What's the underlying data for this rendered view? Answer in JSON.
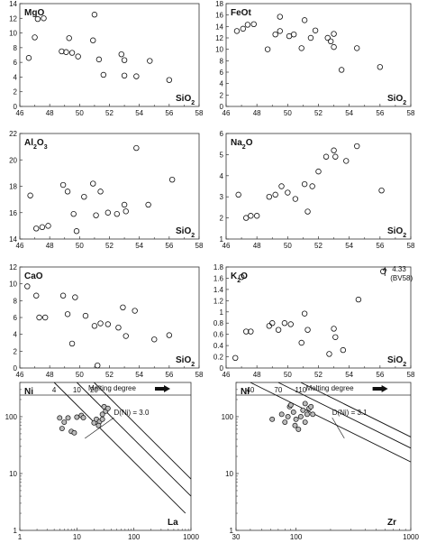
{
  "chart_data": [
    {
      "id": "mgo",
      "type": "scatter",
      "ylabel": "MgO",
      "xlabel": "SiO2",
      "xlim": [
        46,
        58
      ],
      "ylim": [
        0,
        14
      ],
      "xticks": [
        46,
        48,
        50,
        52,
        54,
        56,
        58
      ],
      "yticks": [
        0,
        2,
        4,
        6,
        8,
        10,
        12,
        14
      ],
      "points": [
        [
          46.6,
          6.6
        ],
        [
          47.0,
          9.4
        ],
        [
          47.2,
          11.9
        ],
        [
          47.6,
          12.0
        ],
        [
          48.8,
          7.5
        ],
        [
          49.1,
          7.4
        ],
        [
          49.3,
          9.3
        ],
        [
          49.5,
          7.3
        ],
        [
          49.9,
          6.8
        ],
        [
          50.9,
          9.0
        ],
        [
          51.0,
          12.5
        ],
        [
          51.3,
          6.4
        ],
        [
          51.6,
          4.3
        ],
        [
          52.8,
          7.1
        ],
        [
          53.0,
          6.3
        ],
        [
          53.0,
          4.2
        ],
        [
          53.8,
          4.1
        ],
        [
          54.7,
          6.2
        ],
        [
          56.0,
          3.6
        ]
      ]
    },
    {
      "id": "feot",
      "type": "scatter",
      "ylabel": "FeOt",
      "xlabel": "SiO2",
      "xlim": [
        46,
        58
      ],
      "ylim": [
        0,
        18
      ],
      "xticks": [
        46,
        48,
        50,
        52,
        54,
        56,
        58
      ],
      "yticks": [
        0,
        2,
        4,
        6,
        8,
        10,
        12,
        14,
        16,
        18
      ],
      "points": [
        [
          46.7,
          13.2
        ],
        [
          47.1,
          13.6
        ],
        [
          47.4,
          14.3
        ],
        [
          47.8,
          14.4
        ],
        [
          48.7,
          10.0
        ],
        [
          49.2,
          12.6
        ],
        [
          49.5,
          13.2
        ],
        [
          49.5,
          15.7
        ],
        [
          50.1,
          12.3
        ],
        [
          50.4,
          12.6
        ],
        [
          50.9,
          10.2
        ],
        [
          51.1,
          15.1
        ],
        [
          51.5,
          12.0
        ],
        [
          51.8,
          13.3
        ],
        [
          52.6,
          12.0
        ],
        [
          52.8,
          11.4
        ],
        [
          53.0,
          12.7
        ],
        [
          53.0,
          10.4
        ],
        [
          53.5,
          6.4
        ],
        [
          54.5,
          10.2
        ],
        [
          56.0,
          6.9
        ]
      ]
    },
    {
      "id": "al2o3",
      "type": "scatter",
      "ylabel": "Al2O3",
      "xlabel": "SiO2",
      "xlim": [
        46,
        58
      ],
      "ylim": [
        14,
        22
      ],
      "xticks": [
        46,
        48,
        50,
        52,
        54,
        56,
        58
      ],
      "yticks": [
        14,
        16,
        18,
        20,
        22
      ],
      "points": [
        [
          46.7,
          17.3
        ],
        [
          47.1,
          14.8
        ],
        [
          47.5,
          14.9
        ],
        [
          47.9,
          15.0
        ],
        [
          48.9,
          18.1
        ],
        [
          49.2,
          17.6
        ],
        [
          49.6,
          15.9
        ],
        [
          49.8,
          14.6
        ],
        [
          50.3,
          17.2
        ],
        [
          50.9,
          18.2
        ],
        [
          51.1,
          15.8
        ],
        [
          51.4,
          17.6
        ],
        [
          51.9,
          16.0
        ],
        [
          52.5,
          15.9
        ],
        [
          53.0,
          16.6
        ],
        [
          53.1,
          16.1
        ],
        [
          53.8,
          20.9
        ],
        [
          54.6,
          16.6
        ],
        [
          56.2,
          18.5
        ]
      ]
    },
    {
      "id": "na2o",
      "type": "scatter",
      "ylabel": "Na2O",
      "xlabel": "SiO2",
      "xlim": [
        46,
        58
      ],
      "ylim": [
        1,
        6
      ],
      "xticks": [
        46,
        48,
        50,
        52,
        54,
        56,
        58
      ],
      "yticks": [
        1,
        2,
        3,
        4,
        5,
        6
      ],
      "points": [
        [
          46.8,
          3.1
        ],
        [
          47.3,
          2.0
        ],
        [
          47.6,
          2.1
        ],
        [
          48.0,
          2.1
        ],
        [
          48.8,
          3.0
        ],
        [
          49.2,
          3.1
        ],
        [
          49.6,
          3.5
        ],
        [
          50.0,
          3.2
        ],
        [
          50.5,
          2.9
        ],
        [
          51.1,
          3.6
        ],
        [
          51.3,
          2.3
        ],
        [
          51.6,
          3.5
        ],
        [
          52.0,
          4.2
        ],
        [
          52.5,
          4.9
        ],
        [
          53.0,
          5.2
        ],
        [
          53.1,
          4.9
        ],
        [
          53.8,
          4.7
        ],
        [
          54.5,
          5.4
        ],
        [
          56.1,
          3.3
        ]
      ]
    },
    {
      "id": "cao",
      "type": "scatter",
      "ylabel": "CaO",
      "xlabel": "SiO2",
      "xlim": [
        46,
        58
      ],
      "ylim": [
        0,
        12
      ],
      "xticks": [
        46,
        48,
        50,
        52,
        54,
        56,
        58
      ],
      "yticks": [
        0,
        2,
        4,
        6,
        8,
        10,
        12
      ],
      "points": [
        [
          46.5,
          9.7
        ],
        [
          47.1,
          8.6
        ],
        [
          47.3,
          6.0
        ],
        [
          47.7,
          6.0
        ],
        [
          48.9,
          8.6
        ],
        [
          49.2,
          6.4
        ],
        [
          49.5,
          2.9
        ],
        [
          49.7,
          8.4
        ],
        [
          50.4,
          6.2
        ],
        [
          51.0,
          5.0
        ],
        [
          51.2,
          0.3
        ],
        [
          51.4,
          5.3
        ],
        [
          51.9,
          5.2
        ],
        [
          52.6,
          4.8
        ],
        [
          52.9,
          7.2
        ],
        [
          53.1,
          3.8
        ],
        [
          53.7,
          6.8
        ],
        [
          55.0,
          3.4
        ],
        [
          56.0,
          3.9
        ]
      ]
    },
    {
      "id": "k2o",
      "type": "scatter",
      "ylabel": "K2O",
      "xlabel": "SiO2",
      "xlim": [
        46,
        58
      ],
      "ylim": [
        0,
        1.8
      ],
      "xticks": [
        46,
        48,
        50,
        52,
        54,
        56,
        58
      ],
      "yticks": [
        0,
        0.2,
        0.4,
        0.6,
        0.8,
        1.0,
        1.2,
        1.4,
        1.6,
        1.8
      ],
      "points": [
        [
          46.6,
          0.18
        ],
        [
          47.0,
          1.62
        ],
        [
          47.3,
          0.65
        ],
        [
          47.6,
          0.65
        ],
        [
          48.8,
          0.75
        ],
        [
          49.0,
          0.8
        ],
        [
          49.4,
          0.68
        ],
        [
          49.8,
          0.8
        ],
        [
          50.2,
          0.78
        ],
        [
          50.9,
          0.45
        ],
        [
          51.1,
          0.97
        ],
        [
          51.3,
          0.68
        ],
        [
          52.7,
          0.25
        ],
        [
          53.0,
          0.7
        ],
        [
          53.1,
          0.55
        ],
        [
          53.6,
          0.32
        ],
        [
          54.6,
          1.22
        ],
        [
          56.2,
          1.72
        ]
      ],
      "annotation": {
        "value": "4.33",
        "sample": "(BV58)"
      }
    },
    {
      "id": "ni-la",
      "type": "scatter",
      "scale": "log-log",
      "ylabel": "Ni",
      "xlabel": "La",
      "xlim": [
        1,
        1000
      ],
      "ylim": [
        1,
        400
      ],
      "xticks": [
        1,
        10,
        100,
        1000
      ],
      "yticks": [
        1,
        10,
        100
      ],
      "title": "Melting degree",
      "degree_labels": [
        "4",
        "10",
        "20"
      ],
      "curve_label": "D(Ni) = 3.0",
      "points": [
        [
          5,
          95
        ],
        [
          5.5,
          62
        ],
        [
          6,
          80
        ],
        [
          7,
          95
        ],
        [
          8,
          55
        ],
        [
          9,
          52
        ],
        [
          10,
          98
        ],
        [
          12,
          105
        ],
        [
          13,
          96
        ],
        [
          20,
          78
        ],
        [
          22,
          90
        ],
        [
          25,
          82
        ],
        [
          28,
          110
        ],
        [
          30,
          150
        ],
        [
          32,
          125
        ],
        [
          35,
          140
        ],
        [
          28,
          90
        ],
        [
          24,
          70
        ]
      ]
    },
    {
      "id": "ni-zr",
      "type": "scatter",
      "scale": "log-log",
      "ylabel": "Ni",
      "xlabel": "Zr",
      "xlim": [
        30,
        1000
      ],
      "ylim": [
        1,
        400
      ],
      "xticks": [
        30,
        100,
        1000
      ],
      "yticks": [
        1,
        10,
        100
      ],
      "title": "Melting degree",
      "degree_labels": [
        "40",
        "70",
        "110"
      ],
      "curve_label": "D(Ni) = 3.1",
      "points": [
        [
          62,
          90
        ],
        [
          75,
          110
        ],
        [
          80,
          80
        ],
        [
          85,
          100
        ],
        [
          88,
          150
        ],
        [
          90,
          160
        ],
        [
          95,
          120
        ],
        [
          98,
          70
        ],
        [
          100,
          90
        ],
        [
          105,
          60
        ],
        [
          110,
          100
        ],
        [
          115,
          130
        ],
        [
          120,
          170
        ],
        [
          125,
          110
        ],
        [
          130,
          140
        ],
        [
          135,
          150
        ],
        [
          140,
          110
        ],
        [
          120,
          80
        ]
      ]
    }
  ]
}
